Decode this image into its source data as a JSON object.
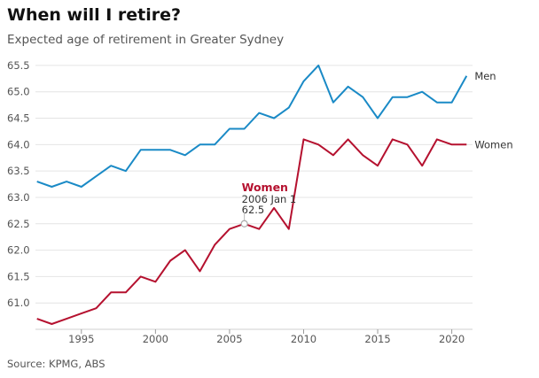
{
  "title": "When will I retire?",
  "subtitle": "Expected age of retirement in Greater Sydney",
  "source": "Source: KPMG, ABS",
  "tooltip": {
    "series": "Women",
    "date": "2006 Jan 1",
    "value": "62.5"
  },
  "chart_data": {
    "type": "line",
    "title": "When will I retire?",
    "subtitle": "Expected age of retirement in Greater Sydney",
    "xlabel": "",
    "ylabel": "",
    "xlim": [
      1991.9,
      2021.4
    ],
    "ylim": [
      60.5,
      65.7
    ],
    "grid": true,
    "x_ticks": [
      1995,
      2000,
      2005,
      2010,
      2015,
      2020
    ],
    "y_ticks": [
      61.0,
      61.5,
      62.0,
      62.5,
      63.0,
      63.5,
      64.0,
      64.5,
      65.0,
      65.5
    ],
    "x": [
      1992,
      1993,
      1994,
      1995,
      1996,
      1997,
      1998,
      1999,
      2000,
      2001,
      2002,
      2003,
      2004,
      2005,
      2006,
      2007,
      2008,
      2009,
      2010,
      2011,
      2012,
      2013,
      2014,
      2015,
      2016,
      2017,
      2018,
      2019,
      2020,
      2021
    ],
    "series": [
      {
        "name": "Men",
        "color": "#1a8ac6",
        "values": [
          63.3,
          63.2,
          63.3,
          63.2,
          63.4,
          63.6,
          63.5,
          63.9,
          63.9,
          63.9,
          63.8,
          64.0,
          64.0,
          64.3,
          64.3,
          64.6,
          64.5,
          64.7,
          65.2,
          65.5,
          64.8,
          65.1,
          64.9,
          64.5,
          64.9,
          64.9,
          65.0,
          64.8,
          64.8,
          65.3
        ]
      },
      {
        "name": "Women",
        "color": "#b5112f",
        "values": [
          60.7,
          60.6,
          60.7,
          60.8,
          60.9,
          61.2,
          61.2,
          61.5,
          61.4,
          61.8,
          62.0,
          61.6,
          62.1,
          62.4,
          62.5,
          62.4,
          62.8,
          62.4,
          64.1,
          64.0,
          63.8,
          64.1,
          63.8,
          63.6,
          64.1,
          64.0,
          63.6,
          64.1,
          64.0,
          64.0
        ]
      }
    ],
    "highlight": {
      "series": "Women",
      "x": 2006,
      "y": 62.5
    }
  }
}
